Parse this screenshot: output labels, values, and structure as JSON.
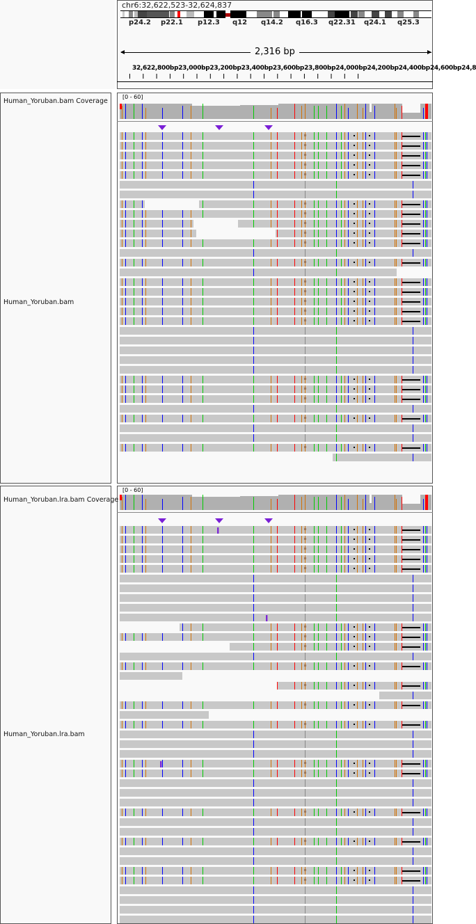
{
  "locus": "chr6:32,622,523-32,624,837",
  "cytobands": [
    "p24.2",
    "p22.1",
    "p12.3",
    "q12",
    "q14.2",
    "q16.3",
    "q22.31",
    "q24.1",
    "q25.3"
  ],
  "ruler": {
    "span": "2,316 bp",
    "ticks": "32,622,800 32,623,000 32,623,200 32,623,400 32,623,600 32,623,800 32,624,000 32,624,200 32,624,400 32,624,600 32,624,8",
    "tick_text": "32,622,800bp23,000bp23,200bp23,400bp23,600bp23,800bp24,000bp24,200bp24,400bp24,600bp24,8"
  },
  "tracks": [
    {
      "coverage_label": "Human_Yoruban.bam Coverage",
      "range": "[0 - 60]",
      "alignment_label": "Human_Yoruban.bam"
    },
    {
      "coverage_label": "Human_Yoruban.lra.bam Coverage",
      "range": "[0 - 60]",
      "alignment_label": "Human_Yoruban.lra.bam"
    }
  ],
  "colors": {
    "read": "#c8c8c8",
    "coverage": "#b0b0b0",
    "A": "#00cc00",
    "C": "#0000ff",
    "G": "#d17105",
    "T": "#ff0000",
    "insertion": "#7a1fd6"
  }
}
